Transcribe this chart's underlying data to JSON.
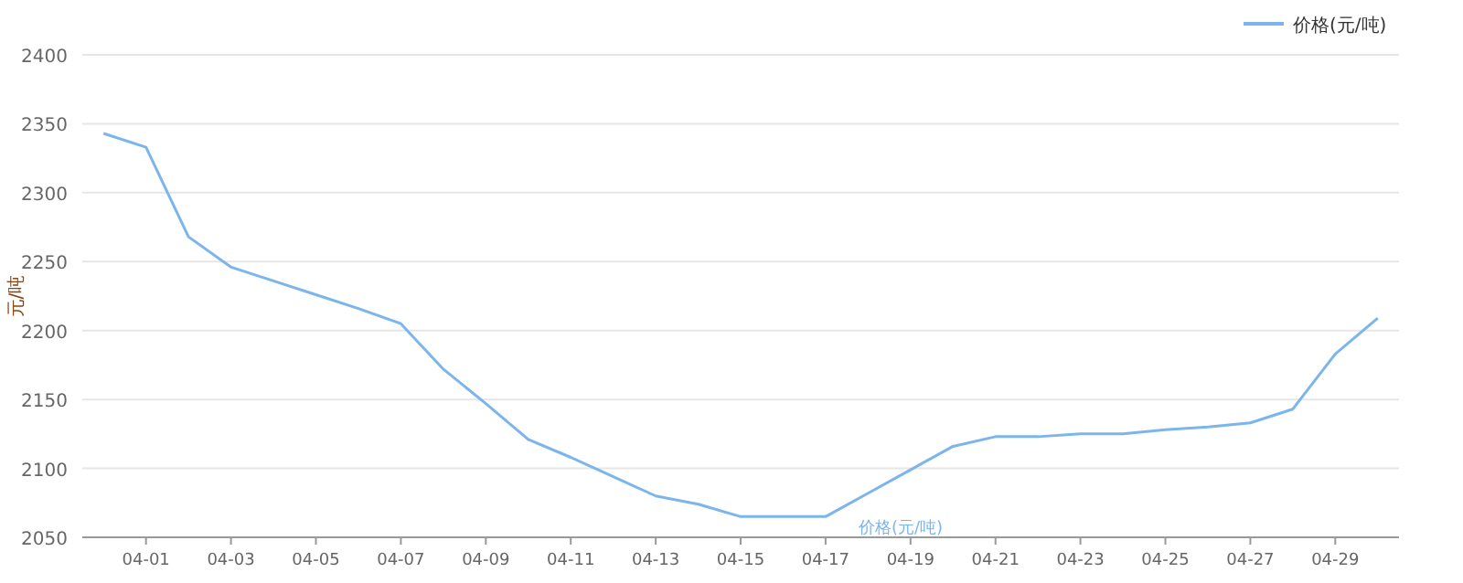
{
  "chart_data": {
    "type": "line",
    "ylabel": "元/吨",
    "categories": [
      null,
      "04-01",
      null,
      "04-03",
      null,
      "04-05",
      null,
      "04-07",
      null,
      "04-09",
      null,
      "04-11",
      null,
      "04-13",
      null,
      "04-15",
      null,
      "04-17",
      null,
      "04-19",
      null,
      "04-21",
      null,
      "04-23",
      null,
      "04-25",
      null,
      "04-27",
      null,
      "04-29",
      null
    ],
    "series": [
      {
        "name": "价格(元/吨)",
        "color": "#7cb5ec",
        "values": [
          2343,
          2333,
          2268,
          2246,
          2236,
          2226,
          2216,
          2205,
          2172,
          2147,
          2121,
          2108,
          2094,
          2080,
          2074,
          2065,
          2065,
          2065,
          2082,
          2099,
          2116,
          2123,
          2123,
          2125,
          2125,
          2128,
          2130,
          2133,
          2143,
          2183,
          2209
        ]
      }
    ],
    "ylim": [
      2050,
      2400
    ],
    "yticks": [
      2050,
      2100,
      2150,
      2200,
      2250,
      2300,
      2350,
      2400
    ],
    "grid": "y",
    "legend": "top right",
    "marker": "none",
    "line_style": "solid"
  }
}
